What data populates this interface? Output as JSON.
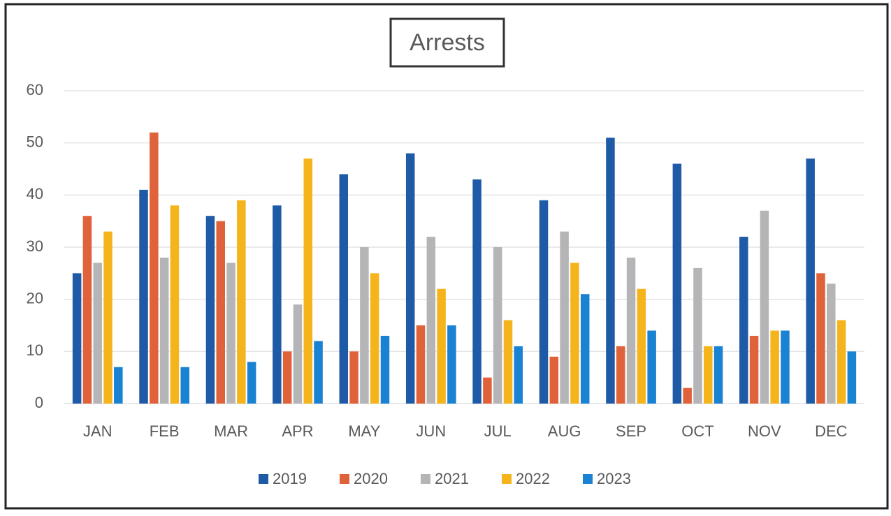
{
  "chart_data": {
    "type": "bar",
    "title": "Arrests",
    "categories": [
      "JAN",
      "FEB",
      "MAR",
      "APR",
      "MAY",
      "JUN",
      "JUL",
      "AUG",
      "SEP",
      "OCT",
      "NOV",
      "DEC"
    ],
    "series": [
      {
        "name": "2019",
        "color": "#1f5aa6",
        "values": [
          25,
          41,
          36,
          38,
          44,
          48,
          43,
          39,
          51,
          46,
          32,
          47
        ]
      },
      {
        "name": "2020",
        "color": "#e0623a",
        "values": [
          36,
          52,
          35,
          10,
          10,
          15,
          5,
          9,
          11,
          3,
          13,
          25
        ]
      },
      {
        "name": "2021",
        "color": "#b5b5b8",
        "values": [
          27,
          28,
          27,
          19,
          30,
          32,
          30,
          33,
          28,
          26,
          37,
          23
        ]
      },
      {
        "name": "2022",
        "color": "#f5b41c",
        "values": [
          33,
          38,
          39,
          47,
          25,
          22,
          16,
          27,
          22,
          11,
          14,
          16
        ]
      },
      {
        "name": "2023",
        "color": "#1a82d2",
        "values": [
          7,
          7,
          8,
          12,
          13,
          15,
          11,
          21,
          14,
          11,
          14,
          10
        ]
      }
    ],
    "ylim": [
      0,
      60
    ],
    "yticks": [
      0,
      10,
      20,
      30,
      40,
      50,
      60
    ],
    "grid": true,
    "legend": "bottom"
  }
}
